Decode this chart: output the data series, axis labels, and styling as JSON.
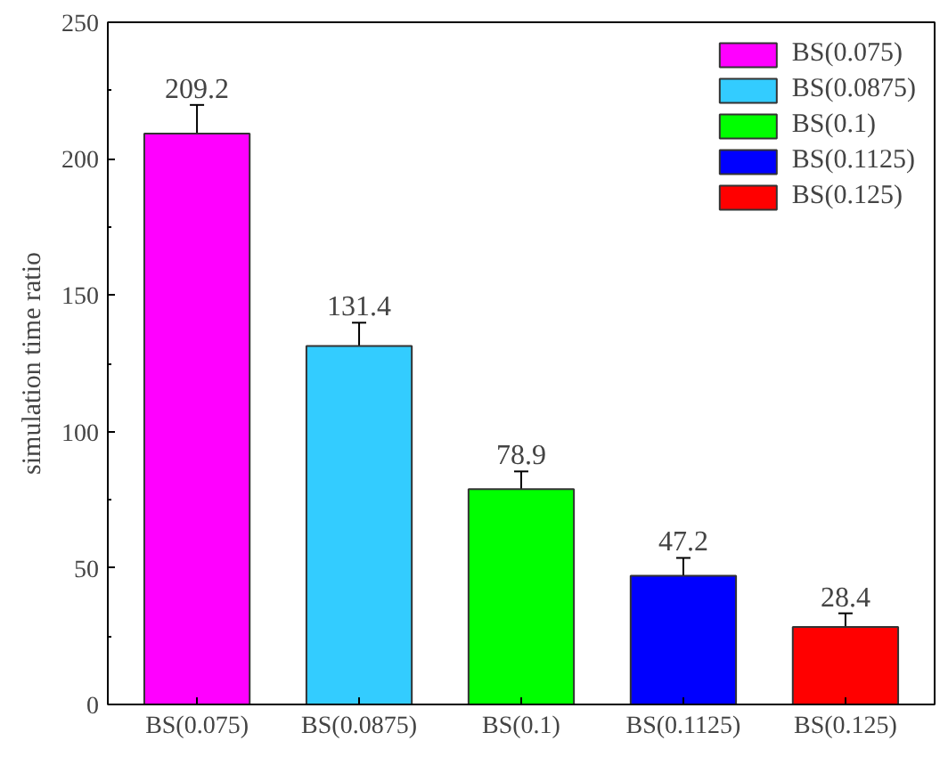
{
  "chart_data": {
    "type": "bar",
    "ylabel": "simulation time ratio",
    "categories": [
      "BS(0.075)",
      "BS(0.0875)",
      "BS(0.1)",
      "BS(0.1125)",
      "BS(0.125)"
    ],
    "series": [
      {
        "name": "BS(0.075)",
        "color": "#ff00ff",
        "values": [
          209.2,
          null,
          null,
          null,
          null
        ],
        "errors": [
          10.5,
          null,
          null,
          null,
          null
        ]
      },
      {
        "name": "BS(0.0875)",
        "color": "#33ccff",
        "values": [
          null,
          131.4,
          null,
          null,
          null
        ],
        "errors": [
          null,
          8.5,
          null,
          null,
          null
        ]
      },
      {
        "name": "BS(0.1)",
        "color": "#00ff00",
        "values": [
          null,
          null,
          78.9,
          null,
          null
        ],
        "errors": [
          null,
          null,
          6.5,
          null,
          null
        ]
      },
      {
        "name": "BS(0.1125)",
        "color": "#0000ff",
        "values": [
          null,
          null,
          null,
          47.2,
          null
        ],
        "errors": [
          null,
          null,
          null,
          6.5,
          null
        ]
      },
      {
        "name": "BS(0.125)",
        "color": "#ff0000",
        "values": [
          null,
          null,
          null,
          null,
          28.4
        ],
        "errors": [
          null,
          null,
          null,
          null,
          5
        ]
      }
    ],
    "ylim": [
      0,
      250
    ],
    "yticks": [
      0,
      50,
      100,
      150,
      200,
      250
    ],
    "data_labels": true,
    "legend": "top right"
  }
}
